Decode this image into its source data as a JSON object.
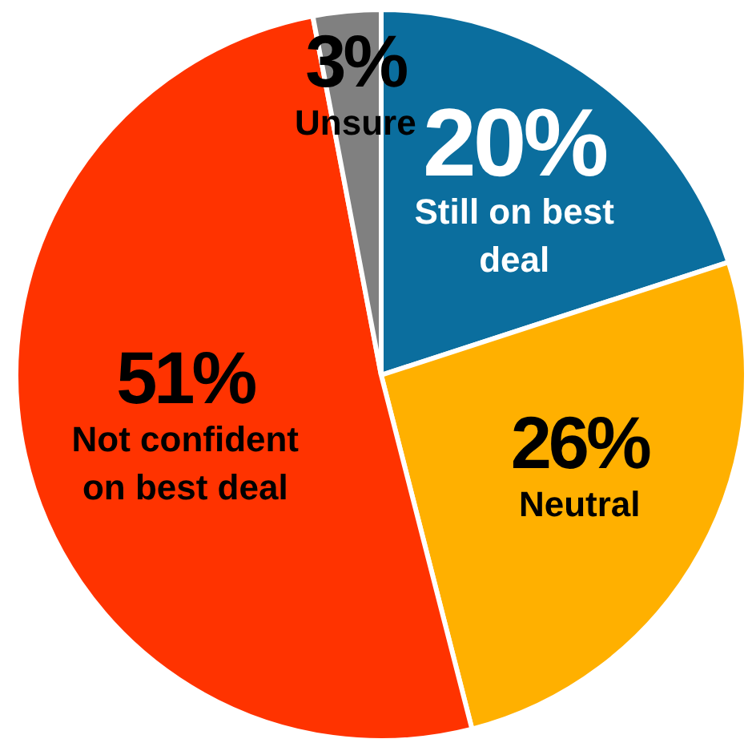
{
  "chart_data": {
    "type": "pie",
    "categories": [
      "Still on best deal",
      "Neutral",
      "Not confident on best deal",
      "Unsure"
    ],
    "values": [
      20,
      26,
      51,
      3
    ],
    "colors": [
      "#0b6e9e",
      "#ffb000",
      "#ff3300",
      "#808080"
    ],
    "value_labels": [
      "20%",
      "26%",
      "51%",
      "3%"
    ]
  }
}
